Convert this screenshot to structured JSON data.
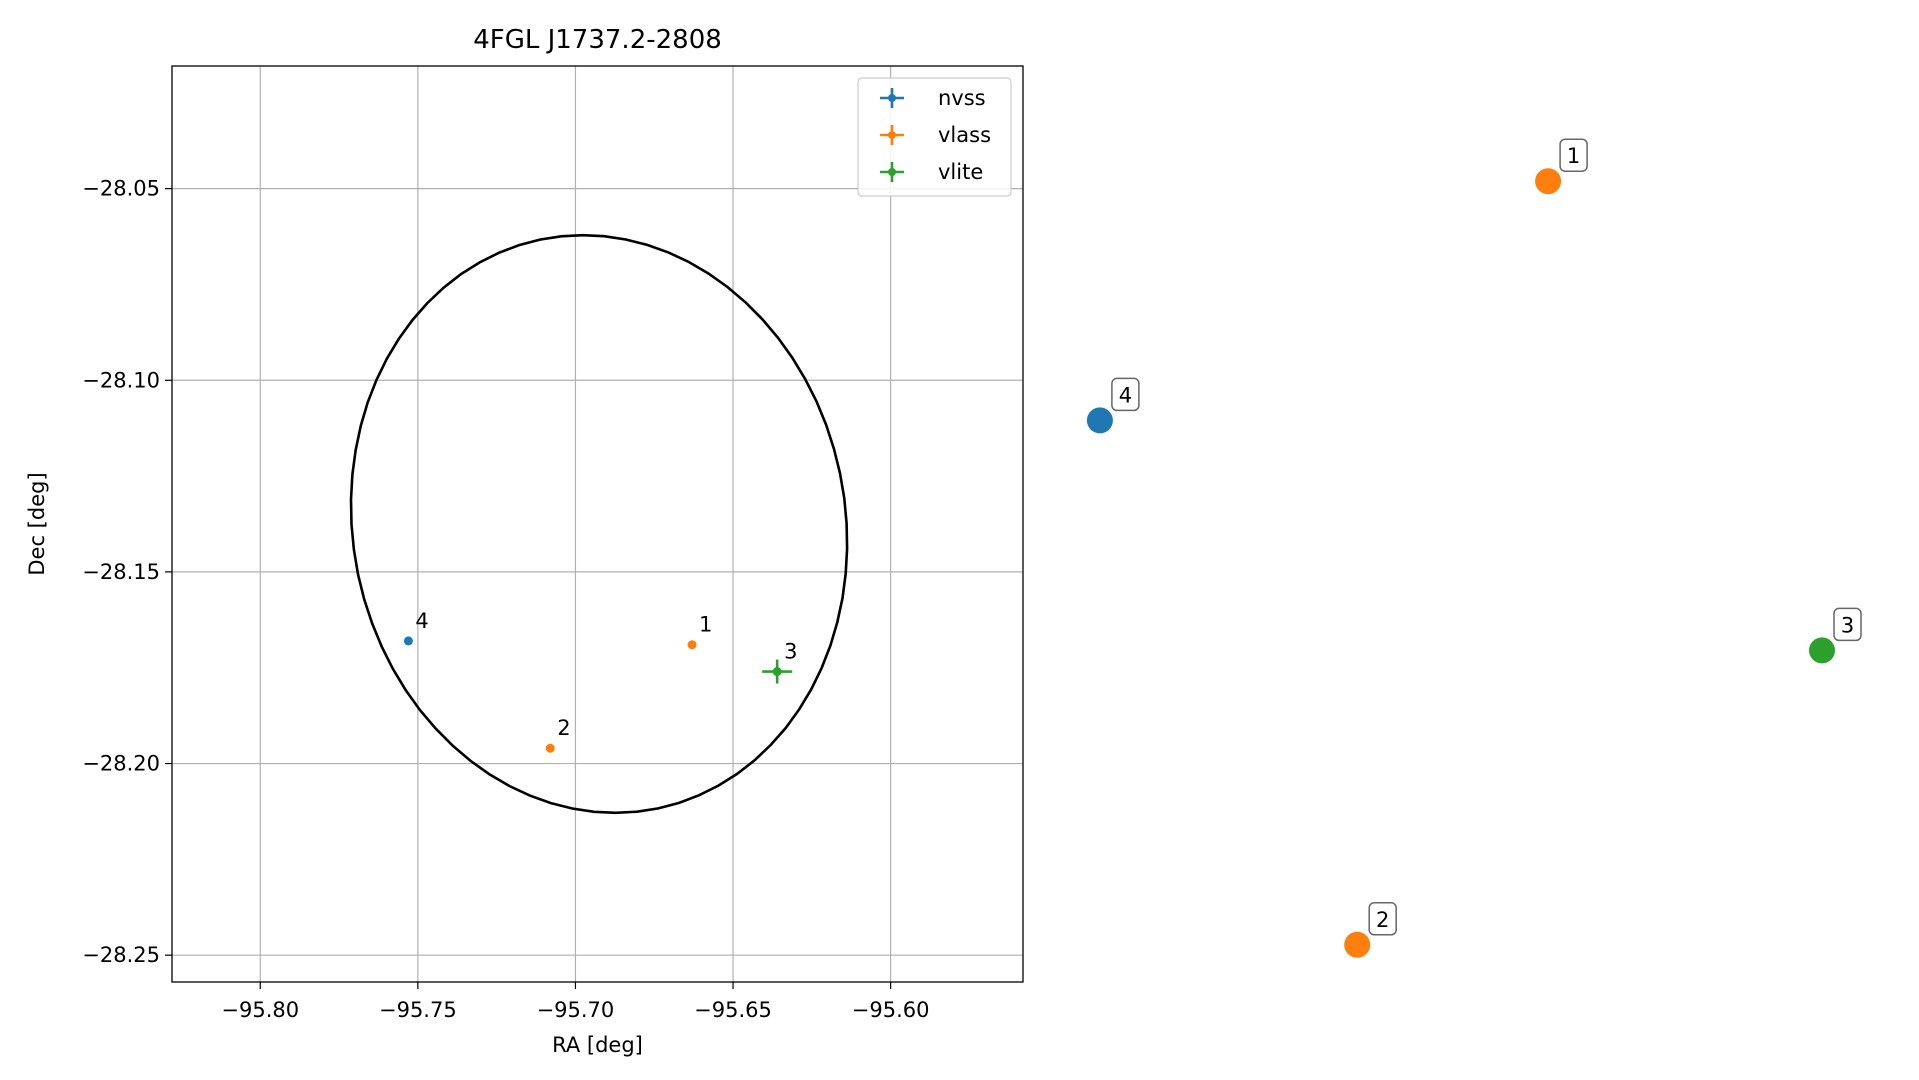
{
  "chart_data": [
    {
      "type": "scatter",
      "title": "4FGL J1737.2-2808",
      "xlabel": "RA [deg]",
      "ylabel": "Dec [deg]",
      "xlim": [
        -95.828,
        -95.558
      ],
      "ylim": [
        -28.257,
        -28.018
      ],
      "xticks": [
        -95.8,
        -95.75,
        -95.7,
        -95.65,
        -95.6
      ],
      "xtick_labels": [
        "−95.80",
        "−95.75",
        "−95.70",
        "−95.65",
        "−95.60"
      ],
      "yticks": [
        -28.05,
        -28.1,
        -28.15,
        -28.2,
        -28.25
      ],
      "ytick_labels": [
        "−28.05",
        "−28.10",
        "−28.15",
        "−28.20",
        "−28.25"
      ],
      "grid": true,
      "legend_position": "top-right",
      "ellipse": {
        "center": [
          -95.6925,
          -28.1375
        ],
        "semi_axis_ra": 0.08,
        "semi_axis_dec": 0.074,
        "angle_deg": -28,
        "color": "#000000"
      },
      "series": [
        {
          "name": "nvss",
          "color": "#1f77b4",
          "points": [
            {
              "label": "4",
              "x": -95.753,
              "y": -28.168
            }
          ]
        },
        {
          "name": "vlass",
          "color": "#ff7f0e",
          "points": [
            {
              "label": "1",
              "x": -95.663,
              "y": -28.169
            },
            {
              "label": "2",
              "x": -95.708,
              "y": -28.196
            }
          ]
        },
        {
          "name": "vlite",
          "color": "#2ca02c",
          "points": [
            {
              "label": "3",
              "x": -95.636,
              "y": -28.176
            }
          ]
        }
      ]
    },
    {
      "type": "scatter",
      "title": "",
      "axes_visible": false,
      "xlim": [
        0,
        1
      ],
      "ylim": [
        0,
        1
      ],
      "points": [
        {
          "label": "1",
          "x": 0.57,
          "y": 0.89,
          "color": "#ff7f0e"
        },
        {
          "label": "2",
          "x": 0.34,
          "y": 0.06,
          "color": "#ff7f0e"
        },
        {
          "label": "3",
          "x": 0.9,
          "y": 0.38,
          "color": "#2ca02c"
        },
        {
          "label": "4",
          "x": 0.03,
          "y": 0.63,
          "color": "#1f77b4"
        }
      ]
    }
  ]
}
